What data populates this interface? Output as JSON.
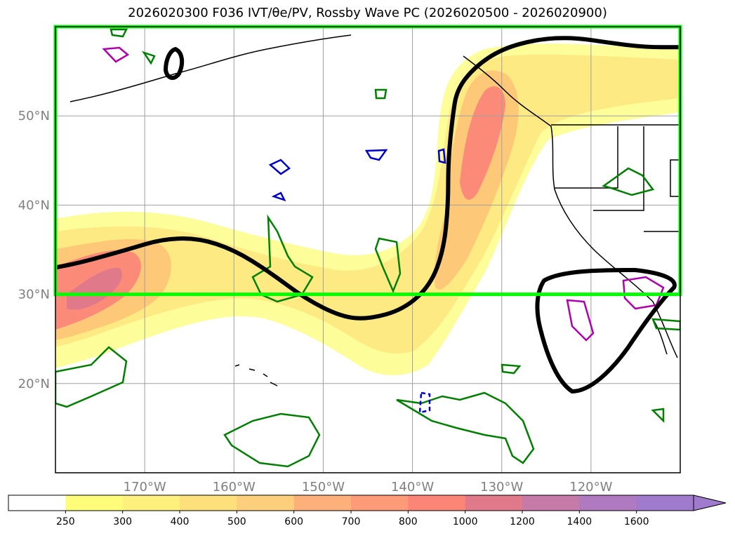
{
  "title": "2026020300 F036 IVT/θe/PV, Rossby Wave PC (2026020500 - 2026020900)",
  "colors": {
    "box": "#00ff00",
    "rossby_contour": "#000000",
    "pv_contour": "#008000",
    "theta_e_contour": "#0000cc",
    "ivt_contour": "#b000b0",
    "gridline": "#a0a0a0",
    "coast": "#000000"
  },
  "chart_data": {
    "type": "heatmap",
    "title": "2026020300 F036 IVT/θe/PV, Rossby Wave PC (2026020500 - 2026020900)",
    "map_extent": {
      "lon_min": -180,
      "lon_max": -110,
      "lat_min": 10,
      "lat_max": 60
    },
    "lat_ticks": [
      {
        "value": 20,
        "label": "20°N"
      },
      {
        "value": 30,
        "label": "30°N"
      },
      {
        "value": 40,
        "label": "40°N"
      },
      {
        "value": 50,
        "label": "50°N"
      }
    ],
    "lon_ticks": [
      {
        "value": -170,
        "label": "170°W"
      },
      {
        "value": -160,
        "label": "160°W"
      },
      {
        "value": -150,
        "label": "150°W"
      },
      {
        "value": -140,
        "label": "140°W"
      },
      {
        "value": -130,
        "label": "130°W"
      },
      {
        "value": -120,
        "label": "120°W"
      }
    ],
    "highlight_box": {
      "lon_min": -180,
      "lon_max": -110,
      "lat_min": 30,
      "lat_max": 60
    },
    "colorbar": {
      "levels": [
        250,
        300,
        400,
        500,
        600,
        700,
        800,
        1000,
        1200,
        1400,
        1600
      ],
      "labels": [
        "250",
        "300",
        "400",
        "500",
        "600",
        "700",
        "800",
        "1000",
        "1200",
        "1400",
        "1600"
      ],
      "colors": [
        "#ffffff",
        "#fdfd7a",
        "#fdf07c",
        "#fde07c",
        "#fdcf7c",
        "#fdb07a",
        "#fd9a78",
        "#fb8576",
        "#e07a8a",
        "#c57aa8",
        "#b07ac0",
        "#a07acc"
      ],
      "extend": "max"
    },
    "rossby_wave_contour": {
      "lons": [
        -180,
        -177,
        -172,
        -168,
        -164,
        -160,
        -156,
        -152,
        -148,
        -145,
        -141,
        -138,
        -136.5,
        -136,
        -136,
        -135.5,
        -135,
        -133,
        -130,
        -126,
        -122,
        -118,
        -114,
        -110
      ],
      "lats": [
        33,
        33.6,
        35,
        36.2,
        36.3,
        35,
        32.5,
        29.5,
        27.5,
        27.2,
        28.3,
        31,
        35,
        40,
        45,
        50,
        53,
        55.5,
        57.5,
        58.6,
        58.8,
        58.2,
        57.7,
        57.7
      ]
    },
    "ivt_field": [
      {
        "lon": -174,
        "lat": 32,
        "value": 1000
      },
      {
        "lon": -178,
        "lat": 28,
        "value": 800
      },
      {
        "lon": -131,
        "lat": 47,
        "value": 800
      },
      {
        "lon": -140,
        "lat": 31,
        "value": 700
      },
      {
        "lon": -148,
        "lat": 41,
        "value": 300
      },
      {
        "lon": -148,
        "lat": 55,
        "value": 300
      },
      {
        "lon": -113,
        "lat": 56,
        "value": 400
      }
    ]
  }
}
